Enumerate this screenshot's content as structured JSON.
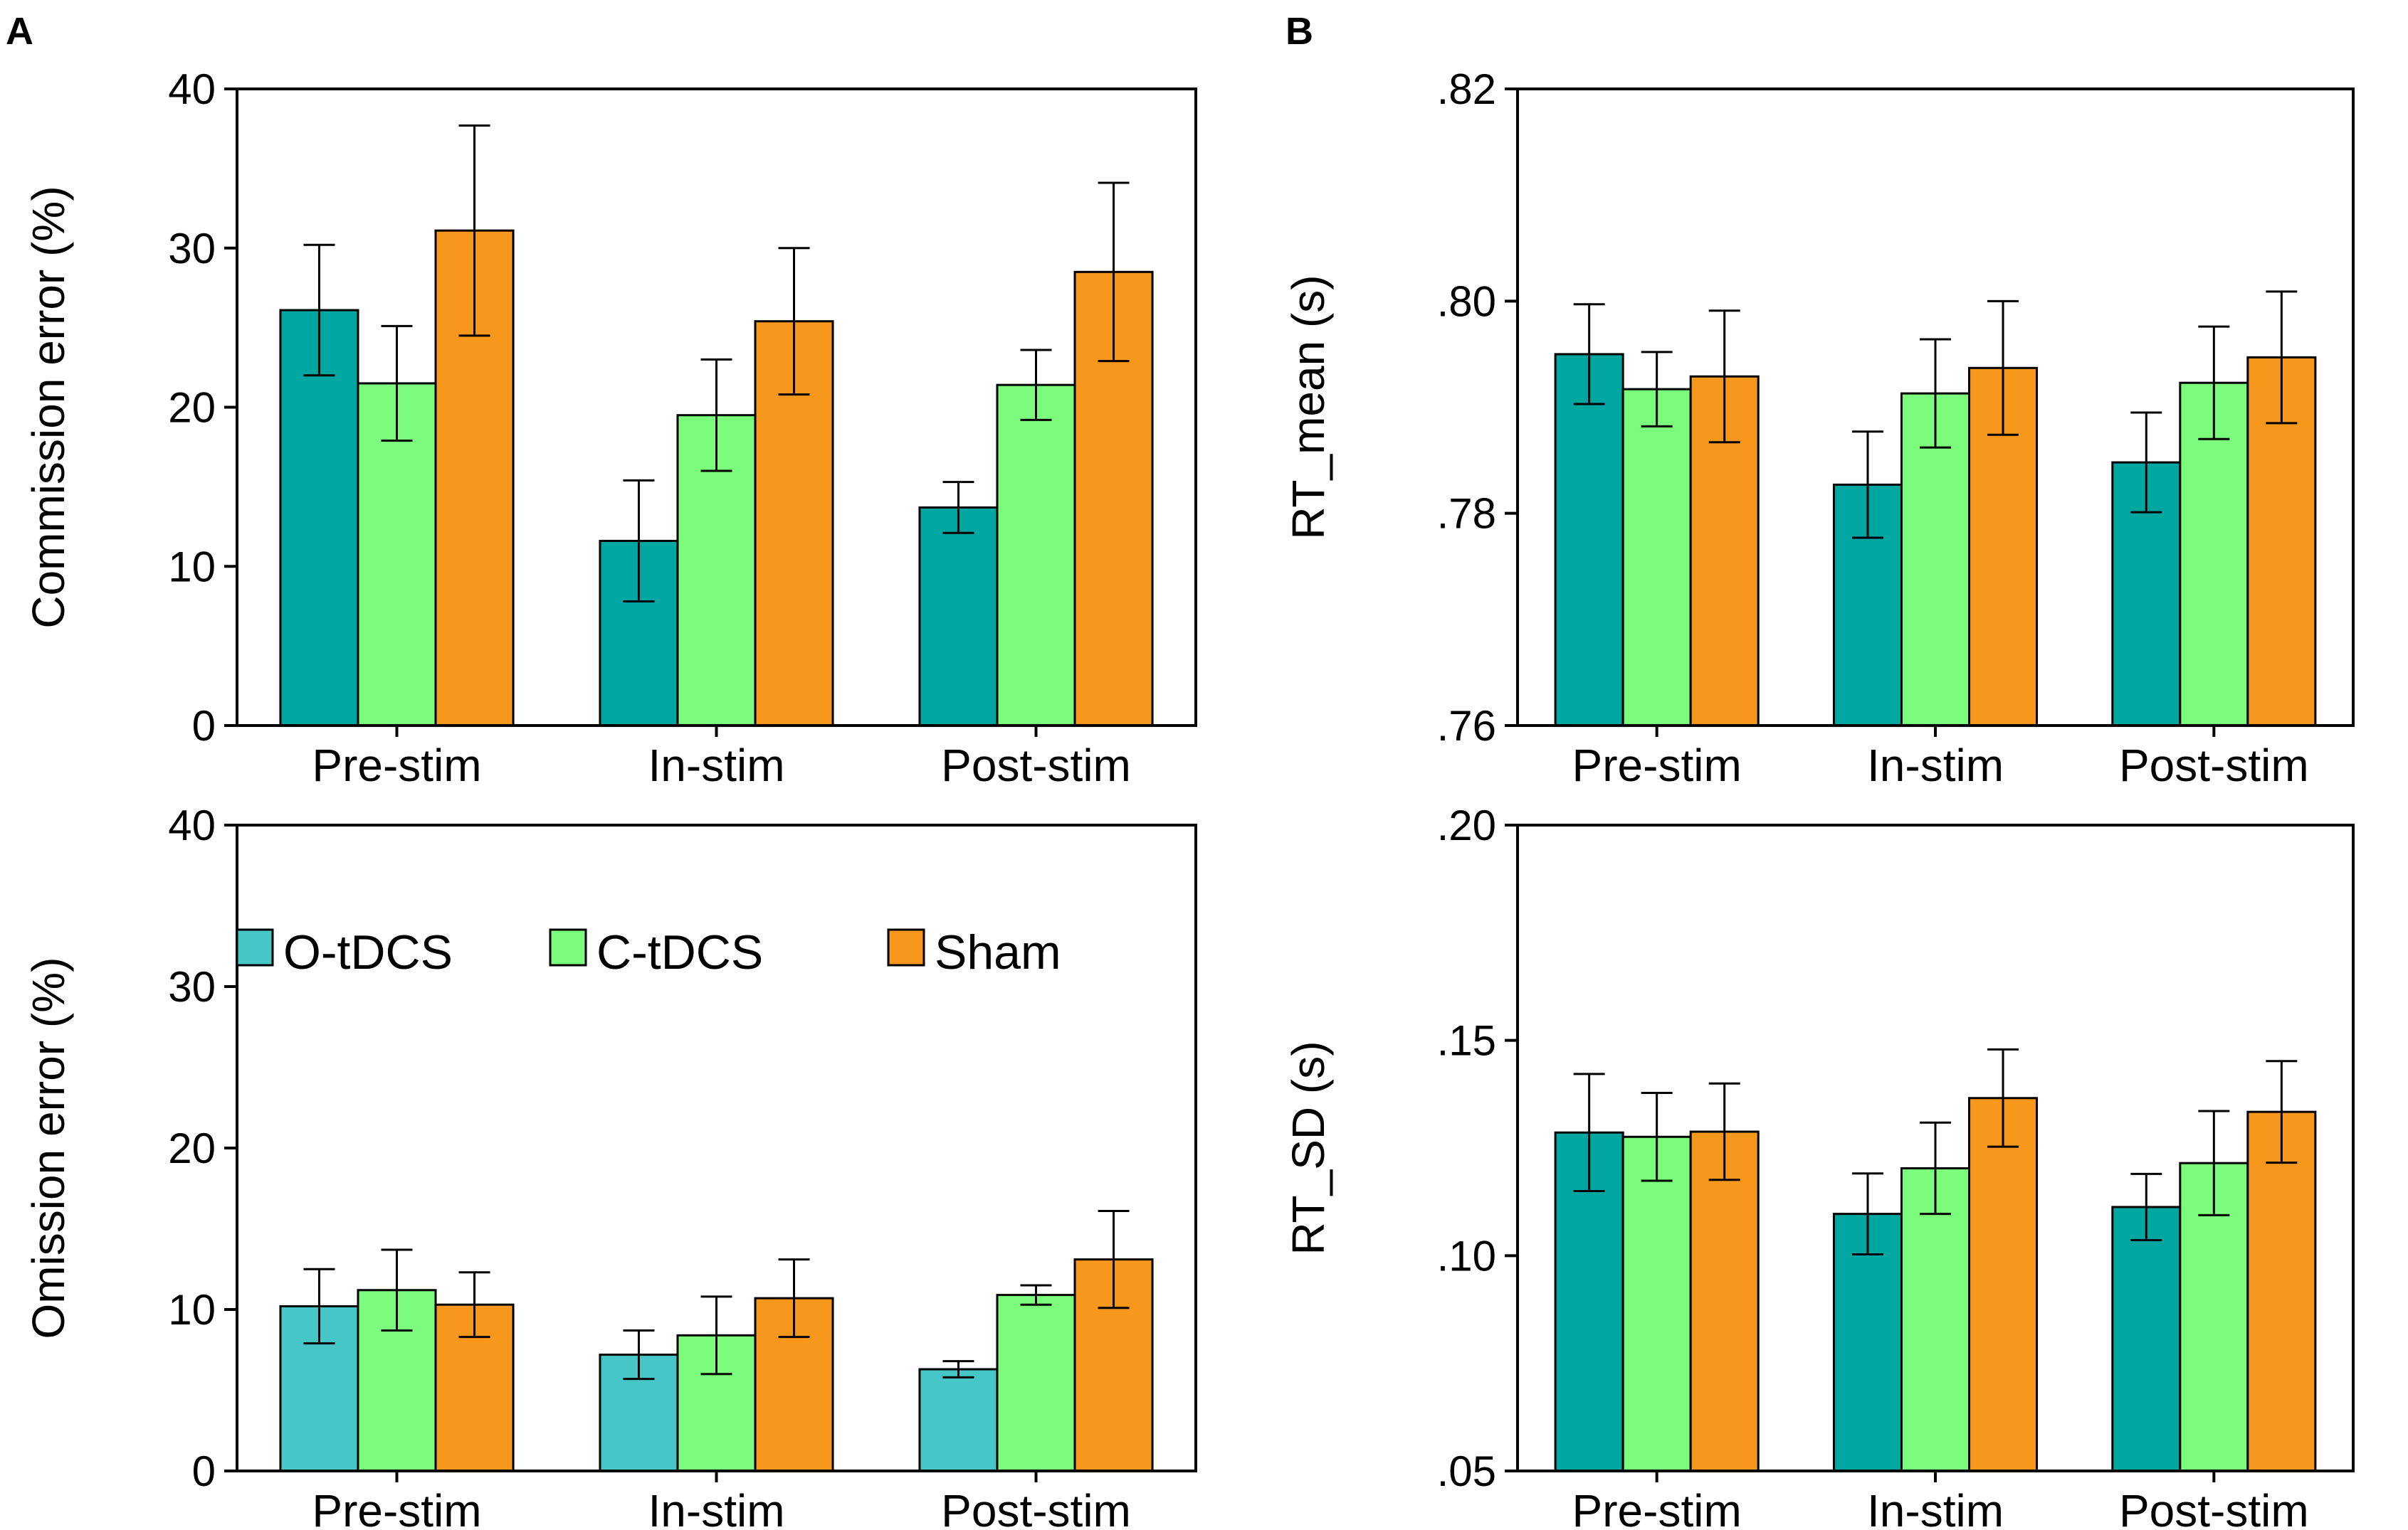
{
  "panels": {
    "a": "A",
    "b": "B"
  },
  "colors": {
    "o_tdcs": "#00A6A0",
    "o_tdcs_light": "#47C6C8",
    "c_tdcs": "#7CFC7C",
    "sham": "#F7981D"
  },
  "legend": {
    "items": [
      "O-tDCS",
      "C-tDCS",
      "Sham"
    ]
  },
  "chart_data": [
    {
      "id": "commission",
      "type": "bar",
      "panel": "A",
      "ylabel": "Commission error (%)",
      "categories": [
        "Pre-stim",
        "In-stim",
        "Post-stim"
      ],
      "ylim": [
        0,
        40
      ],
      "yticks": [
        0,
        10,
        20,
        30,
        40
      ],
      "ytick_labels": [
        "0",
        "10",
        "20",
        "30",
        "40"
      ],
      "series": [
        {
          "name": "O-tDCS",
          "color": "#00A6A0",
          "values": [
            26.1,
            11.6,
            13.7
          ],
          "errors": [
            4.1,
            3.8,
            1.6
          ]
        },
        {
          "name": "C-tDCS",
          "color": "#7CFC7C",
          "values": [
            21.5,
            19.5,
            21.4
          ],
          "errors": [
            3.6,
            3.5,
            2.2
          ]
        },
        {
          "name": "Sham",
          "color": "#F7981D",
          "values": [
            31.1,
            25.4,
            28.5
          ],
          "errors": [
            6.6,
            4.6,
            5.6
          ]
        }
      ]
    },
    {
      "id": "rt_mean",
      "type": "bar",
      "panel": "B",
      "ylabel": "RT_mean (s)",
      "categories": [
        "Pre-stim",
        "In-stim",
        "Post-stim"
      ],
      "ylim": [
        0.76,
        0.82
      ],
      "yticks": [
        0.76,
        0.78,
        0.8,
        0.82
      ],
      "ytick_labels": [
        ".76",
        ".78",
        ".80",
        ".82"
      ],
      "series": [
        {
          "name": "O-tDCS",
          "color": "#00A6A0",
          "values": [
            0.795,
            0.7827,
            0.7848
          ],
          "errors": [
            0.0047,
            0.005,
            0.0047
          ]
        },
        {
          "name": "C-tDCS",
          "color": "#7CFC7C",
          "values": [
            0.7917,
            0.7913,
            0.7923
          ],
          "errors": [
            0.0035,
            0.0051,
            0.0053
          ]
        },
        {
          "name": "Sham",
          "color": "#F7981D",
          "values": [
            0.7929,
            0.7937,
            0.7947
          ],
          "errors": [
            0.0062,
            0.0063,
            0.0062
          ]
        }
      ]
    },
    {
      "id": "omission",
      "type": "bar",
      "panel": "A",
      "ylabel": "Omission error (%)",
      "categories": [
        "Pre-stim",
        "In-stim",
        "Post-stim"
      ],
      "ylim": [
        0,
        40
      ],
      "yticks": [
        0,
        10,
        20,
        30,
        40
      ],
      "ytick_labels": [
        "0",
        "10",
        "20",
        "30",
        "40"
      ],
      "series": [
        {
          "name": "O-tDCS",
          "color": "#47C6C8",
          "values": [
            10.2,
            7.2,
            6.3
          ],
          "errors": [
            2.3,
            1.5,
            0.5
          ]
        },
        {
          "name": "C-tDCS",
          "color": "#7CFC7C",
          "values": [
            11.2,
            8.4,
            10.9
          ],
          "errors": [
            2.5,
            2.4,
            0.6
          ]
        },
        {
          "name": "Sham",
          "color": "#F7981D",
          "values": [
            10.3,
            10.7,
            13.1
          ],
          "errors": [
            2.0,
            2.4,
            3.0
          ]
        }
      ]
    },
    {
      "id": "rt_sd",
      "type": "bar",
      "panel": "B",
      "ylabel": "RT_SD (s)",
      "categories": [
        "Pre-stim",
        "In-stim",
        "Post-stim"
      ],
      "ylim": [
        0.05,
        0.2
      ],
      "yticks": [
        0.05,
        0.1,
        0.15,
        0.2
      ],
      "ytick_labels": [
        ".05",
        ".10",
        ".15",
        ".20"
      ],
      "series": [
        {
          "name": "O-tDCS",
          "color": "#00A6A0",
          "values": [
            0.1286,
            0.1097,
            0.1113
          ],
          "errors": [
            0.0136,
            0.0094,
            0.0077
          ]
        },
        {
          "name": "C-tDCS",
          "color": "#7CFC7C",
          "values": [
            0.1276,
            0.1203,
            0.1215
          ],
          "errors": [
            0.0102,
            0.0106,
            0.0121
          ]
        },
        {
          "name": "Sham",
          "color": "#F7981D",
          "values": [
            0.1288,
            0.1366,
            0.1334
          ],
          "errors": [
            0.0112,
            0.0113,
            0.0118
          ]
        }
      ]
    }
  ]
}
